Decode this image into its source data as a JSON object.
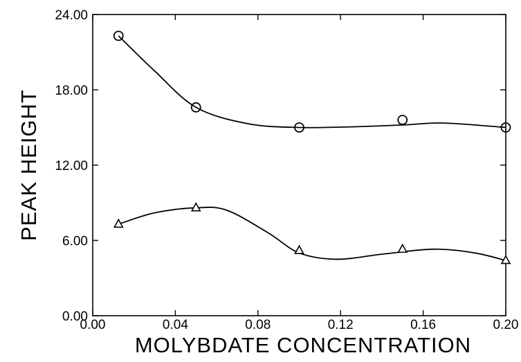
{
  "chart_data": {
    "type": "scatter",
    "title": "",
    "xlabel": "MOLYBDATE CONCENTRATION",
    "ylabel": "PEAK HEIGHT",
    "xlim": [
      0.0,
      0.2
    ],
    "ylim": [
      0.0,
      24.0
    ],
    "x_ticks": [
      "0.00",
      "0.04",
      "0.08",
      "0.12",
      "0.16",
      "0.20"
    ],
    "y_ticks": [
      "0.00",
      "6.00",
      "12.00",
      "18.00",
      "24.00"
    ],
    "grid": false,
    "legend": "none",
    "series": [
      {
        "marker": "circle",
        "color": "#000000",
        "x": [
          0.0125,
          0.05,
          0.1,
          0.15,
          0.2
        ],
        "y": [
          22.3,
          16.6,
          15.0,
          15.6,
          15.0
        ],
        "curve": [
          [
            0.0125,
            22.3
          ],
          [
            0.03,
            19.5
          ],
          [
            0.05,
            16.6
          ],
          [
            0.075,
            15.3
          ],
          [
            0.1,
            15.0
          ],
          [
            0.125,
            15.05
          ],
          [
            0.15,
            15.2
          ],
          [
            0.17,
            15.35
          ],
          [
            0.2,
            15.0
          ]
        ]
      },
      {
        "marker": "triangle",
        "color": "#000000",
        "x": [
          0.0125,
          0.05,
          0.1,
          0.15,
          0.2
        ],
        "y": [
          7.3,
          8.6,
          5.2,
          5.3,
          4.4
        ],
        "curve": [
          [
            0.0125,
            7.3
          ],
          [
            0.03,
            8.2
          ],
          [
            0.05,
            8.6
          ],
          [
            0.065,
            8.4
          ],
          [
            0.085,
            6.6
          ],
          [
            0.1,
            5.0
          ],
          [
            0.118,
            4.5
          ],
          [
            0.14,
            4.9
          ],
          [
            0.165,
            5.3
          ],
          [
            0.185,
            5.0
          ],
          [
            0.2,
            4.4
          ]
        ]
      }
    ]
  }
}
